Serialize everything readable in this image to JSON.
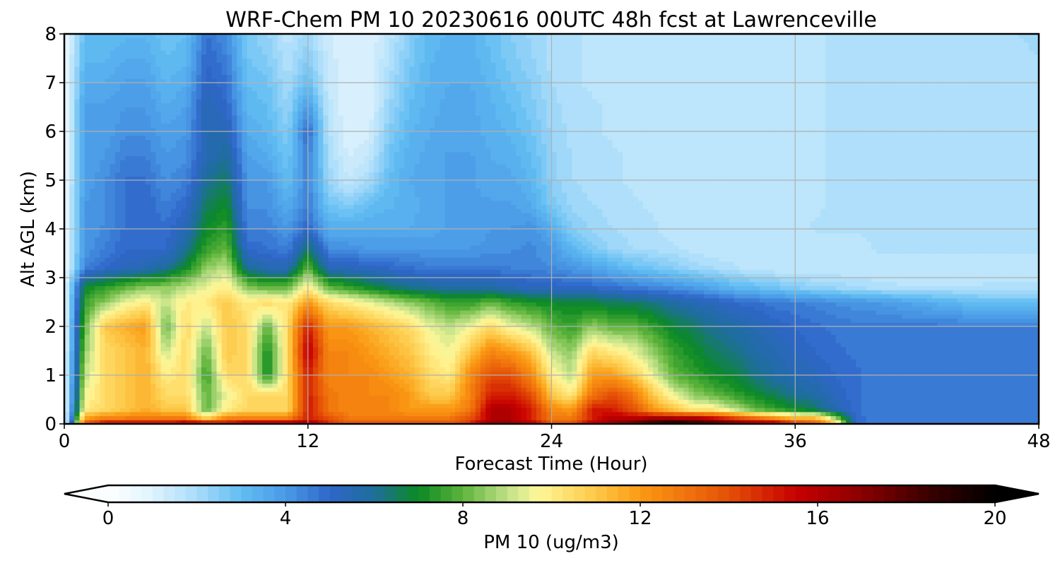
{
  "chart_data": {
    "type": "heatmap",
    "title": "WRF-Chem PM 10  20230616 00UTC 48h fcst at Lawrenceville",
    "xlabel": "Forecast Time (Hour)",
    "ylabel": "Alt AGL (km)",
    "xlim": [
      0,
      48
    ],
    "ylim": [
      0,
      8
    ],
    "xticks": [
      0,
      12,
      24,
      36,
      48
    ],
    "yticks": [
      0,
      1,
      2,
      3,
      4,
      5,
      6,
      7,
      8
    ],
    "grid": true,
    "x_hours": [
      0,
      1,
      2,
      3,
      4,
      5,
      6,
      7,
      8,
      9,
      10,
      11,
      12,
      13,
      14,
      15,
      16,
      17,
      18,
      19,
      20,
      21,
      22,
      23,
      24,
      25,
      26,
      27,
      28,
      29,
      30,
      31,
      32,
      33,
      34,
      35,
      36,
      37,
      38,
      39,
      40,
      41,
      42,
      43,
      44,
      45,
      46,
      47,
      48
    ],
    "y_km": [
      0,
      0.1,
      0.3,
      0.6,
      1.0,
      1.5,
      2.0,
      2.5,
      2.8,
      3.2,
      3.6,
      4.0,
      4.5,
      5.0,
      5.5,
      6.0,
      6.5,
      7.0,
      7.5,
      8.0
    ],
    "values": [
      [
        0.5,
        14,
        16,
        16,
        16,
        16,
        17,
        17,
        16,
        17,
        17,
        17,
        17,
        15,
        14,
        14,
        14,
        14,
        14,
        14,
        15,
        17,
        17,
        16,
        14,
        14,
        16,
        17,
        18,
        19,
        20,
        19,
        19,
        18,
        17,
        17,
        15,
        14,
        11,
        5,
        4.5,
        4.5,
        4.5,
        4.5,
        4.5,
        4.5,
        4.5,
        4.5,
        4.5
      ],
      [
        0.5,
        12,
        13,
        13,
        13,
        13,
        13,
        11,
        13,
        13,
        13,
        13,
        15,
        14,
        13,
        13,
        13,
        13,
        13,
        13,
        14,
        16,
        16,
        15,
        13,
        13,
        15,
        16,
        16,
        17,
        17,
        17,
        16,
        15,
        14,
        13,
        12,
        12,
        9,
        5,
        4.5,
        4.5,
        4.5,
        4.5,
        4.5,
        4.5,
        4.5,
        4.5,
        4.5
      ],
      [
        0.5,
        10,
        10.5,
        11,
        11.5,
        11,
        11,
        8,
        10,
        10.5,
        10.5,
        10.5,
        15,
        13,
        12.5,
        12.5,
        12.5,
        12,
        12,
        12,
        13,
        16,
        16,
        15,
        12.5,
        12,
        15,
        15,
        14,
        12,
        11,
        10,
        10,
        9,
        8,
        7.5,
        7,
        6.5,
        5.5,
        4.8,
        4.5,
        4.5,
        4.5,
        4.5,
        4.5,
        4.5,
        4.5,
        4.5,
        4.5
      ],
      [
        0.5,
        9.5,
        10.5,
        11,
        11.5,
        10.5,
        10.5,
        8,
        9.5,
        10.5,
        10.5,
        10.5,
        15,
        13,
        12.5,
        12.5,
        12.5,
        12,
        11,
        11,
        12.5,
        15,
        15,
        14,
        11,
        10,
        13,
        14,
        13,
        11,
        9.5,
        8.5,
        8,
        7.5,
        7,
        6.5,
        6,
        5.8,
        5.2,
        4.8,
        4.5,
        4.5,
        4.5,
        4.5,
        4.5,
        4.5,
        4.5,
        4.5,
        4.5
      ],
      [
        0.5,
        9,
        10.5,
        11,
        11.5,
        10,
        10.5,
        7.5,
        10.5,
        10.5,
        7,
        10.5,
        15,
        12.5,
        12.5,
        12.5,
        12,
        11.5,
        10.5,
        10,
        12.5,
        14,
        14,
        12.5,
        10,
        9,
        12,
        12,
        11,
        9.5,
        8,
        7.5,
        7,
        6.8,
        6.2,
        5.8,
        5.5,
        5.3,
        5,
        4.8,
        4.6,
        4.6,
        4.6,
        4.6,
        4.6,
        4.6,
        4.6,
        4.5,
        4.5
      ],
      [
        0.5,
        8.5,
        10.5,
        11,
        11.5,
        9,
        10.5,
        8,
        11,
        10.5,
        7,
        10.5,
        16,
        12.5,
        12.5,
        12,
        11.5,
        11,
        10,
        9.5,
        11,
        12.5,
        12,
        11,
        9,
        8.5,
        10.5,
        10,
        9.5,
        8.5,
        7.5,
        7,
        6.5,
        6.2,
        5.8,
        5.5,
        5.2,
        5,
        4.8,
        4.7,
        4.6,
        4.6,
        4.6,
        4.6,
        4.6,
        4.6,
        4.6,
        4.5,
        4.5
      ],
      [
        0.5,
        8,
        11,
        11.5,
        12,
        8,
        10.5,
        9,
        11,
        10.5,
        8,
        10.5,
        15,
        12,
        12,
        11.5,
        11,
        10.5,
        9.5,
        9,
        9.5,
        10.5,
        9.5,
        9,
        8,
        7.5,
        8.5,
        8,
        8,
        7.5,
        6.8,
        6.5,
        6,
        5.8,
        5.5,
        5.2,
        5,
        4.8,
        4.7,
        4.6,
        4.6,
        4.6,
        4.6,
        4.6,
        4.6,
        4.6,
        4.5,
        4.5,
        4.5
      ],
      [
        0.5,
        7.5,
        8.5,
        9.5,
        10,
        9,
        10,
        10,
        11,
        10,
        10.5,
        10,
        12,
        10.5,
        10,
        9.5,
        9,
        8.5,
        8,
        7.5,
        7.5,
        8,
        7.5,
        7.2,
        7,
        6.8,
        6.8,
        6.5,
        6.5,
        6.2,
        5.8,
        5.5,
        5.3,
        5,
        4.8,
        4.6,
        4.5,
        4.4,
        4.2,
        4.1,
        4,
        3.8,
        3.6,
        3.4,
        3.2,
        3,
        3,
        3,
        3
      ],
      [
        0.5,
        7,
        7.5,
        8,
        8.5,
        8.5,
        9,
        9.5,
        10,
        8.5,
        8,
        8,
        10,
        8,
        7.5,
        7,
        6.5,
        6.2,
        6,
        5.8,
        5.8,
        5.8,
        5.5,
        5.3,
        5.2,
        5,
        5,
        4.8,
        4.6,
        4.4,
        4.2,
        4,
        3.6,
        3.2,
        3,
        2.8,
        2.5,
        2.3,
        2.2,
        2,
        1.9,
        1.8,
        1.8,
        1.8,
        1.8,
        1.8,
        1.8,
        1.8,
        1.8
      ],
      [
        0.5,
        4.5,
        5,
        5.3,
        5.5,
        6,
        7,
        8.5,
        9,
        6,
        5.5,
        5.5,
        8,
        5.5,
        5.3,
        5.2,
        5,
        4.8,
        4.6,
        4.6,
        4.6,
        4.6,
        4.5,
        4.4,
        4.3,
        4.1,
        3.8,
        3.4,
        3,
        2.8,
        2.5,
        2.2,
        2,
        1.8,
        1.6,
        1.5,
        1.5,
        1.5,
        1.5,
        1.5,
        1.5,
        1.5,
        1.5,
        1.5,
        1.5,
        1.5,
        1.6,
        1.6,
        1.6
      ],
      [
        0.5,
        4,
        4.5,
        5,
        5,
        5,
        6,
        7.5,
        8,
        5,
        4.8,
        4.5,
        6.5,
        4.3,
        4.2,
        4,
        4,
        4,
        4,
        4,
        4,
        4.1,
        4.2,
        4.3,
        4,
        3.2,
        2.6,
        2.2,
        2,
        1.9,
        1.8,
        1.6,
        1.5,
        1.5,
        1.5,
        1.5,
        1.5,
        1.5,
        1.5,
        1.6,
        1.8,
        1.8,
        1.8,
        1.8,
        1.8,
        1.8,
        1.8,
        1.8,
        1.8
      ],
      [
        0.5,
        4,
        4.3,
        4.8,
        5,
        4.8,
        5.5,
        7,
        7.5,
        4.5,
        4.5,
        4,
        5,
        3.5,
        3.5,
        3.5,
        3.5,
        3.5,
        3.6,
        3.8,
        3.8,
        4,
        4,
        4.2,
        3.5,
        2.5,
        2.2,
        2,
        1.9,
        1.8,
        1.6,
        1.5,
        1.5,
        1.5,
        1.5,
        1.5,
        1.6,
        1.8,
        1.8,
        1.8,
        1.8,
        1.8,
        1.8,
        1.8,
        1.8,
        1.8,
        1.8,
        1.8,
        1.8
      ],
      [
        0.5,
        4,
        4.2,
        4.8,
        5,
        4.5,
        5,
        6.5,
        7,
        4.2,
        4.2,
        3.5,
        4.5,
        2.8,
        2.5,
        3,
        3.2,
        3.4,
        3.6,
        3.8,
        3.8,
        3.8,
        3.8,
        3.5,
        2.6,
        2.2,
        2,
        1.9,
        1.8,
        1.7,
        1.6,
        1.5,
        1.5,
        1.5,
        1.5,
        1.5,
        1.6,
        1.7,
        1.8,
        1.8,
        1.8,
        1.8,
        1.8,
        1.8,
        1.8,
        1.8,
        1.8,
        1.8,
        1.8
      ],
      [
        0.5,
        3.8,
        4.2,
        4.8,
        4.8,
        4.2,
        4.5,
        6,
        6.5,
        4,
        4,
        3,
        4.5,
        2.2,
        1.5,
        2,
        3,
        3.5,
        3.6,
        3.8,
        3.8,
        3.6,
        3.6,
        3.2,
        2.4,
        2,
        1.9,
        1.8,
        1.7,
        1.6,
        1.5,
        1.5,
        1.5,
        1.5,
        1.5,
        1.5,
        1.6,
        1.7,
        1.8,
        1.8,
        1.8,
        1.8,
        1.8,
        1.8,
        1.8,
        1.8,
        1.8,
        1.8,
        1.8
      ],
      [
        0.5,
        3.8,
        4,
        4.5,
        4.5,
        4,
        4.2,
        5.5,
        6,
        3.8,
        3.5,
        2.8,
        4.5,
        2,
        1.2,
        1.5,
        2.8,
        3.4,
        3.6,
        3.8,
        3.8,
        3.5,
        3.4,
        3,
        2.3,
        2,
        1.9,
        1.8,
        1.7,
        1.6,
        1.5,
        1.5,
        1.5,
        1.5,
        1.5,
        1.5,
        1.6,
        1.7,
        1.8,
        1.8,
        1.8,
        1.8,
        1.8,
        1.8,
        1.8,
        1.8,
        1.8,
        1.8,
        1.8
      ],
      [
        0.5,
        3.8,
        3.8,
        4.2,
        4.2,
        3.8,
        4,
        5.5,
        5.5,
        3.5,
        3.2,
        2.5,
        5,
        1.8,
        1,
        1.2,
        2.5,
        3.2,
        3.5,
        3.6,
        3.6,
        3.4,
        3.2,
        2.8,
        2.2,
        1.9,
        1.8,
        1.7,
        1.6,
        1.5,
        1.5,
        1.5,
        1.5,
        1.5,
        1.5,
        1.5,
        1.6,
        1.7,
        1.8,
        1.8,
        1.8,
        1.8,
        1.8,
        1.8,
        1.8,
        1.8,
        1.8,
        1.8,
        1.8
      ],
      [
        0.5,
        3.8,
        3.8,
        4,
        4,
        3.5,
        3.8,
        5.5,
        5,
        3.2,
        3,
        2.2,
        4,
        1.6,
        1,
        1,
        2.2,
        3,
        3.4,
        3.6,
        3.6,
        3.3,
        3,
        2.6,
        2.1,
        1.9,
        1.8,
        1.7,
        1.6,
        1.5,
        1.5,
        1.5,
        1.5,
        1.5,
        1.5,
        1.5,
        1.6,
        1.7,
        1.8,
        1.8,
        1.8,
        1.8,
        1.8,
        1.8,
        1.8,
        1.8,
        1.8,
        1.8,
        1.8
      ],
      [
        0.5,
        3.5,
        3.5,
        3.8,
        3.8,
        3.2,
        3.5,
        5.2,
        4.8,
        3,
        2.8,
        2,
        3,
        1.5,
        1,
        1,
        2,
        2.8,
        3.3,
        3.5,
        3.5,
        3.2,
        2.8,
        2.5,
        2,
        1.8,
        1.7,
        1.6,
        1.5,
        1.5,
        1.5,
        1.5,
        1.5,
        1.5,
        1.5,
        1.5,
        1.6,
        1.7,
        1.8,
        1.8,
        1.8,
        1.8,
        1.8,
        1.8,
        1.8,
        1.8,
        1.8,
        1.8,
        1.8
      ],
      [
        0.5,
        3.2,
        3.2,
        3.5,
        3.5,
        3,
        3.2,
        5,
        4.5,
        2.8,
        2.5,
        1.8,
        2.5,
        1.4,
        1,
        1,
        1.8,
        2.6,
        3.2,
        3.4,
        3.4,
        3,
        2.6,
        2.3,
        1.9,
        1.8,
        1.7,
        1.6,
        1.5,
        1.5,
        1.5,
        1.5,
        1.5,
        1.5,
        1.5,
        1.5,
        1.6,
        1.7,
        1.8,
        1.8,
        1.8,
        1.8,
        1.8,
        1.8,
        1.8,
        1.8,
        1.8,
        1.8,
        2
      ],
      [
        0.5,
        3,
        3,
        3.2,
        3.2,
        2.8,
        3,
        4.8,
        4.2,
        2.6,
        2.3,
        1.6,
        2.2,
        1.3,
        1,
        1,
        1.6,
        2.5,
        3.1,
        3.3,
        3.3,
        2.9,
        2.5,
        2.2,
        1.9,
        1.8,
        1.7,
        1.6,
        1.5,
        1.5,
        1.5,
        1.5,
        1.5,
        1.5,
        1.5,
        1.5,
        1.6,
        1.7,
        1.8,
        1.8,
        1.8,
        1.8,
        1.8,
        1.8,
        1.8,
        1.8,
        1.8,
        2,
        2.2
      ]
    ],
    "colorbar": {
      "label": "PM 10  (ug/m3)",
      "min": 0,
      "max": 20,
      "step": 0.25,
      "ticks": [
        0,
        4,
        8,
        12,
        16,
        20
      ],
      "extend": "both",
      "orientation": "horizontal",
      "colormap_stops": [
        {
          "v": 0,
          "color": "#ffffff"
        },
        {
          "v": 1,
          "color": "#dff3fd"
        },
        {
          "v": 2,
          "color": "#a8dcf9"
        },
        {
          "v": 3,
          "color": "#62bdf3"
        },
        {
          "v": 4,
          "color": "#4a9ae6"
        },
        {
          "v": 5,
          "color": "#2f66c9"
        },
        {
          "v": 6,
          "color": "#1e6e9c"
        },
        {
          "v": 7,
          "color": "#0a8a22"
        },
        {
          "v": 8,
          "color": "#5fb43c"
        },
        {
          "v": 9,
          "color": "#bfe187"
        },
        {
          "v": 9.7,
          "color": "#fff799"
        },
        {
          "v": 11,
          "color": "#fdc847"
        },
        {
          "v": 12,
          "color": "#fb9a14"
        },
        {
          "v": 14,
          "color": "#e55006"
        },
        {
          "v": 15.5,
          "color": "#c80000"
        },
        {
          "v": 17,
          "color": "#8a0000"
        },
        {
          "v": 18.5,
          "color": "#3a0000"
        },
        {
          "v": 20,
          "color": "#000000"
        }
      ]
    }
  }
}
